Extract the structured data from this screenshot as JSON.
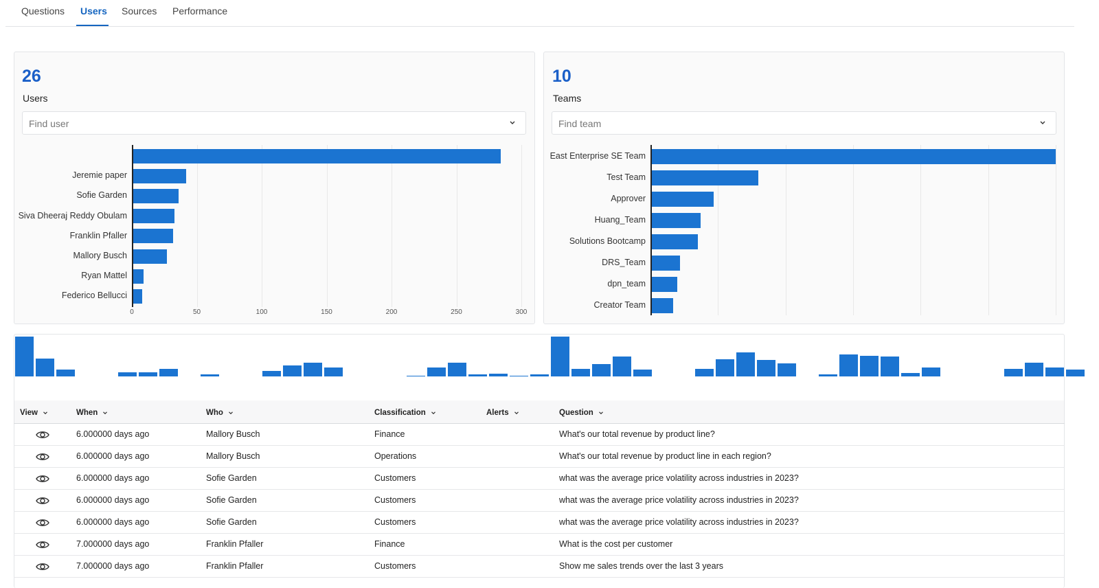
{
  "tabs": [
    {
      "label": "Questions",
      "active": false
    },
    {
      "label": "Users",
      "active": true
    },
    {
      "label": "Sources",
      "active": false
    },
    {
      "label": "Performance",
      "active": false
    }
  ],
  "users_panel": {
    "count": "26",
    "label": "Users",
    "search_placeholder": "Find user"
  },
  "teams_panel": {
    "count": "10",
    "label": "Teams",
    "search_placeholder": "Find team"
  },
  "chart_data": [
    {
      "type": "bar",
      "orientation": "horizontal",
      "categories": [
        "",
        "Jeremie paper",
        "Sofie Garden",
        "Siva Dheeraj Reddy Obulam",
        "Franklin Pfaller",
        "Mallory Busch",
        "Ryan Mattel",
        "Federico Bellucci"
      ],
      "values": [
        284,
        42,
        36,
        33,
        32,
        27,
        9,
        8
      ],
      "xlim": [
        0,
        300
      ],
      "xticks": [
        "0",
        "50",
        "100",
        "150",
        "200",
        "250",
        "300"
      ],
      "grid": true,
      "color": "#1b74d1"
    },
    {
      "type": "bar",
      "orientation": "horizontal",
      "categories": [
        "East Enterprise SE Team",
        "Test Team",
        "Approver",
        "Huang_Team",
        "Solutions Bootcamp",
        "DRS_Team",
        "dpn_team",
        "Creator Team"
      ],
      "values": [
        300,
        80,
        47,
        37,
        35,
        22,
        20,
        17
      ],
      "xlim": [
        0,
        300
      ],
      "xticks": [],
      "grid": true,
      "color": "#1b74d1"
    },
    {
      "type": "bar",
      "orientation": "vertical",
      "title": "",
      "values": [
        46,
        21,
        8,
        0,
        0,
        5,
        5,
        9,
        0,
        2,
        0,
        0,
        6,
        13,
        16,
        10,
        0,
        0,
        0,
        1,
        10,
        16,
        2,
        3,
        1,
        2,
        46,
        9,
        14,
        23,
        8,
        0,
        0,
        9,
        20,
        28,
        19,
        15,
        0,
        2,
        25,
        24,
        23,
        4,
        10,
        0,
        0,
        0,
        9,
        16,
        10,
        8
      ],
      "color": "#1b74d1"
    }
  ],
  "table": {
    "headers": [
      "View",
      "When",
      "Who",
      "Classification",
      "Alerts",
      "Question"
    ],
    "rows": [
      {
        "when": "6.000000 days ago",
        "who": "Mallory Busch",
        "classification": "Finance",
        "question": "What's our total revenue by product line?"
      },
      {
        "when": "6.000000 days ago",
        "who": "Mallory Busch",
        "classification": "Operations",
        "question": "What's our total revenue by product line in each region?"
      },
      {
        "when": "6.000000 days ago",
        "who": "Sofie Garden",
        "classification": "Customers",
        "question": "what was the average price volatility across industries in 2023?"
      },
      {
        "when": "6.000000 days ago",
        "who": "Sofie Garden",
        "classification": "Customers",
        "question": "what was the average price volatility across industries in 2023?"
      },
      {
        "when": "6.000000 days ago",
        "who": "Sofie Garden",
        "classification": "Customers",
        "question": "what was the average price volatility across industries in 2023?"
      },
      {
        "when": "7.000000 days ago",
        "who": "Franklin Pfaller",
        "classification": "Finance",
        "question": "What is the cost per customer"
      },
      {
        "when": "7.000000 days ago",
        "who": "Franklin Pfaller",
        "classification": "Customers",
        "question": "Show me sales trends over the last 3 years"
      }
    ]
  },
  "icons": {
    "row_action": "eye-icon",
    "dropdown": "chevron-down-icon",
    "sort": "sort-chevron-icon"
  },
  "colors": {
    "accent": "#1565c0",
    "bar": "#1b74d1",
    "kpi": "#1a5fc8"
  }
}
